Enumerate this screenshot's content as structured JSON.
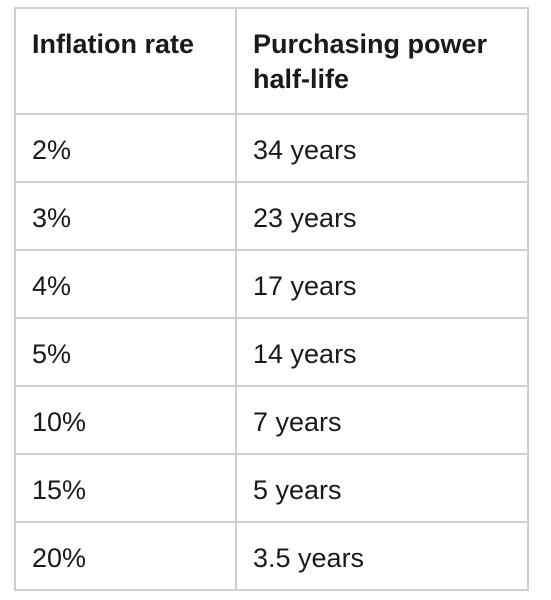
{
  "table": {
    "headers": [
      "Inflation rate",
      "Purchasing power half-life"
    ],
    "rows": [
      [
        "2%",
        "34 years"
      ],
      [
        "3%",
        "23 years"
      ],
      [
        "4%",
        "17 years"
      ],
      [
        "5%",
        "14 years"
      ],
      [
        "10%",
        "7 years"
      ],
      [
        "15%",
        "5 years"
      ],
      [
        "20%",
        "3.5 years"
      ]
    ]
  }
}
